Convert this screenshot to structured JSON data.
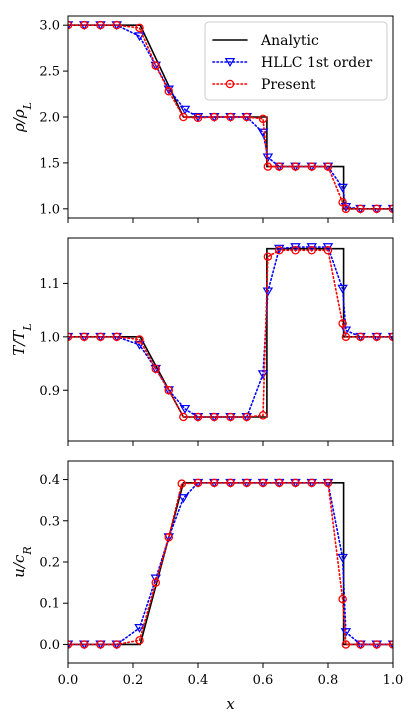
{
  "chart_data": [
    {
      "type": "line",
      "ylabel": "ρ/ρ_L",
      "ylim": [
        0.9,
        3.1
      ],
      "yticks": [
        1.0,
        1.5,
        2.0,
        2.5,
        3.0
      ],
      "ytick_labels": [
        "1.0",
        "1.5",
        "2.0",
        "2.5",
        "3.0"
      ],
      "xlim": [
        0.0,
        1.0
      ],
      "legend_position": "top-right",
      "legend": [
        "Analytic",
        "HLLC 1st order",
        "Present"
      ],
      "series": [
        {
          "name": "Analytic",
          "style": "solid",
          "color": "#000000",
          "x": [
            0.0,
            0.222,
            0.355,
            0.612,
            0.612,
            0.848,
            0.848,
            1.0
          ],
          "y": [
            3.0,
            3.0,
            2.0,
            2.0,
            1.46,
            1.46,
            1.0,
            1.0
          ]
        },
        {
          "name": "HLLC 1st order",
          "style": "dotted",
          "color": "#0000ff",
          "marker": "triangle-down",
          "x": [
            0.0,
            0.05,
            0.1,
            0.15,
            0.22,
            0.27,
            0.31,
            0.36,
            0.4,
            0.45,
            0.5,
            0.55,
            0.6,
            0.615,
            0.65,
            0.7,
            0.75,
            0.8,
            0.845,
            0.855,
            0.9,
            0.95,
            1.0
          ],
          "y": [
            3.0,
            3.0,
            3.0,
            3.0,
            2.88,
            2.56,
            2.3,
            2.08,
            2.0,
            2.0,
            2.0,
            2.0,
            1.83,
            1.56,
            1.46,
            1.46,
            1.46,
            1.46,
            1.23,
            1.02,
            1.0,
            1.0,
            1.0
          ]
        },
        {
          "name": "Present",
          "style": "dotted",
          "color": "#ff0000",
          "marker": "circle",
          "x": [
            0.0,
            0.05,
            0.1,
            0.15,
            0.22,
            0.27,
            0.31,
            0.355,
            0.4,
            0.45,
            0.5,
            0.55,
            0.6,
            0.615,
            0.65,
            0.7,
            0.75,
            0.8,
            0.845,
            0.855,
            0.9,
            0.95,
            1.0
          ],
          "y": [
            3.0,
            3.0,
            3.0,
            3.0,
            2.97,
            2.56,
            2.28,
            2.0,
            1.99,
            2.0,
            2.0,
            2.0,
            1.98,
            1.46,
            1.46,
            1.46,
            1.46,
            1.46,
            1.07,
            1.0,
            1.0,
            1.0,
            1.0
          ]
        }
      ]
    },
    {
      "type": "line",
      "ylabel": "T/T_L",
      "ylim": [
        0.805,
        1.185
      ],
      "yticks": [
        0.9,
        1.0,
        1.1
      ],
      "ytick_labels": [
        "0.9",
        "1.0",
        "1.1"
      ],
      "xlim": [
        0.0,
        1.0
      ],
      "series": [
        {
          "name": "Analytic",
          "style": "solid",
          "color": "#000000",
          "x": [
            0.0,
            0.222,
            0.355,
            0.612,
            0.612,
            0.848,
            0.848,
            1.0
          ],
          "y": [
            1.0,
            1.0,
            0.85,
            0.85,
            1.165,
            1.165,
            1.0,
            1.0
          ]
        },
        {
          "name": "HLLC 1st order",
          "style": "dotted",
          "color": "#0000ff",
          "marker": "triangle-down",
          "x": [
            0.0,
            0.05,
            0.1,
            0.15,
            0.22,
            0.27,
            0.31,
            0.36,
            0.4,
            0.45,
            0.5,
            0.55,
            0.6,
            0.615,
            0.65,
            0.7,
            0.75,
            0.8,
            0.845,
            0.855,
            0.9,
            0.95,
            1.0
          ],
          "y": [
            1.0,
            1.0,
            1.0,
            1.0,
            0.985,
            0.94,
            0.9,
            0.865,
            0.85,
            0.85,
            0.85,
            0.85,
            0.93,
            1.085,
            1.165,
            1.168,
            1.168,
            1.168,
            1.09,
            1.012,
            1.0,
            1.0,
            1.0
          ]
        },
        {
          "name": "Present",
          "style": "dotted",
          "color": "#ff0000",
          "marker": "circle",
          "x": [
            0.0,
            0.05,
            0.1,
            0.15,
            0.22,
            0.27,
            0.31,
            0.355,
            0.4,
            0.45,
            0.5,
            0.55,
            0.6,
            0.615,
            0.65,
            0.7,
            0.75,
            0.8,
            0.845,
            0.855,
            0.9,
            0.95,
            1.0
          ],
          "y": [
            1.0,
            1.0,
            1.0,
            1.0,
            0.995,
            0.94,
            0.9,
            0.85,
            0.85,
            0.85,
            0.85,
            0.85,
            0.853,
            1.15,
            1.162,
            1.162,
            1.162,
            1.162,
            1.025,
            1.0,
            1.0,
            1.0,
            1.0
          ]
        }
      ]
    },
    {
      "type": "line",
      "ylabel": "u/c_R",
      "xlabel": "x",
      "ylim": [
        -0.045,
        0.445
      ],
      "yticks": [
        0.0,
        0.1,
        0.2,
        0.3,
        0.4
      ],
      "ytick_labels": [
        "0.0",
        "0.1",
        "0.2",
        "0.3",
        "0.4"
      ],
      "xlim": [
        0.0,
        1.0
      ],
      "xticks": [
        0.0,
        0.2,
        0.4,
        0.6,
        0.8,
        1.0
      ],
      "xtick_labels": [
        "0.0",
        "0.2",
        "0.4",
        "0.6",
        "0.8",
        "1.0"
      ],
      "series": [
        {
          "name": "Analytic",
          "style": "solid",
          "color": "#000000",
          "x": [
            0.0,
            0.222,
            0.355,
            0.848,
            0.848,
            1.0
          ],
          "y": [
            0.0,
            0.0,
            0.392,
            0.392,
            0.0,
            0.0
          ]
        },
        {
          "name": "HLLC 1st order",
          "style": "dotted",
          "color": "#0000ff",
          "marker": "triangle-down",
          "x": [
            0.0,
            0.05,
            0.1,
            0.15,
            0.22,
            0.27,
            0.31,
            0.355,
            0.4,
            0.45,
            0.5,
            0.55,
            0.6,
            0.65,
            0.7,
            0.75,
            0.8,
            0.845,
            0.855,
            0.9,
            0.95,
            1.0
          ],
          "y": [
            0.0,
            0.0,
            0.0,
            0.0,
            0.04,
            0.16,
            0.26,
            0.355,
            0.392,
            0.392,
            0.392,
            0.392,
            0.392,
            0.392,
            0.392,
            0.392,
            0.392,
            0.21,
            0.03,
            0.0,
            0.0,
            0.0
          ]
        },
        {
          "name": "Present",
          "style": "dotted",
          "color": "#ff0000",
          "marker": "circle",
          "x": [
            0.0,
            0.05,
            0.1,
            0.15,
            0.22,
            0.27,
            0.31,
            0.35,
            0.4,
            0.45,
            0.5,
            0.55,
            0.6,
            0.65,
            0.7,
            0.75,
            0.8,
            0.845,
            0.855,
            0.9,
            0.95,
            1.0
          ],
          "y": [
            0.0,
            0.0,
            0.0,
            0.0,
            0.01,
            0.15,
            0.26,
            0.39,
            0.392,
            0.392,
            0.392,
            0.392,
            0.392,
            0.392,
            0.392,
            0.392,
            0.392,
            0.11,
            0.0,
            0.0,
            0.0,
            0.0
          ]
        }
      ]
    }
  ]
}
